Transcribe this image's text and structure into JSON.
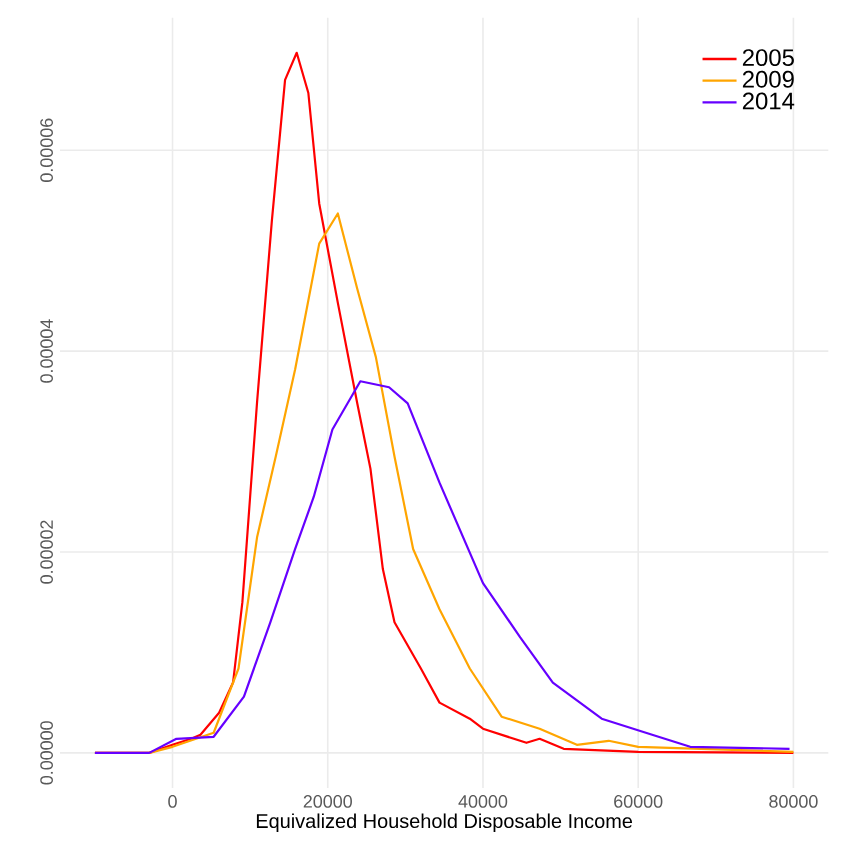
{
  "chart_data": {
    "type": "line",
    "xlabel": "Equivalized Household Disposable Income",
    "xlim": [
      -14500,
      84500
    ],
    "ylim": [
      -3.5e-06,
      7.32e-05
    ],
    "xticks": [
      0,
      20000,
      40000,
      60000,
      80000
    ],
    "yticks": [
      {
        "value": 0,
        "label": "0.00000"
      },
      {
        "value": 2e-05,
        "label": "0.00002"
      },
      {
        "value": 4e-05,
        "label": "0.00004"
      },
      {
        "value": 6e-05,
        "label": "0.00006"
      }
    ],
    "grid": true,
    "legend": "top right",
    "marker": "none",
    "line_style": "solid",
    "series": [
      {
        "name": "2005",
        "color": "#ff0000",
        "x": [
          -10000,
          -3000,
          0,
          2400,
          3600,
          6000,
          7800,
          9000,
          10900,
          12800,
          14500,
          16000,
          17500,
          18900,
          21300,
          23800,
          25500,
          27100,
          28600,
          32000,
          34400,
          38300,
          40000,
          45600,
          47300,
          50400,
          60000,
          80000
        ],
        "values": [
          0,
          0,
          8e-07,
          1.4e-06,
          1.8e-06,
          4e-06,
          7e-06,
          1.5e-05,
          3.5e-05,
          5.3e-05,
          6.7e-05,
          6.97e-05,
          6.57e-05,
          5.47e-05,
          4.48e-05,
          3.48e-05,
          2.83e-05,
          1.83e-05,
          1.3e-05,
          8.4e-06,
          5e-06,
          3.4e-06,
          2.4e-06,
          1e-06,
          1.4e-06,
          4e-07,
          1e-07,
          0
        ]
      },
      {
        "name": "2009",
        "color": "#ffa500",
        "x": [
          -10000,
          -3000,
          0,
          5300,
          8500,
          10900,
          13300,
          15800,
          18900,
          21300,
          23800,
          26200,
          28600,
          31000,
          34400,
          38300,
          42400,
          47300,
          52100,
          56200,
          60000,
          80000
        ],
        "values": [
          0,
          0,
          6e-07,
          2e-06,
          8.4e-06,
          2.15e-05,
          2.95e-05,
          3.82e-05,
          5.07e-05,
          5.37e-05,
          4.62e-05,
          3.94e-05,
          2.95e-05,
          2.03e-05,
          1.43e-05,
          8.4e-06,
          3.6e-06,
          2.4e-06,
          8e-07,
          1.2e-06,
          6e-07,
          1e-07
        ]
      },
      {
        "name": "2014",
        "color": "#6600ff",
        "x": [
          -10000,
          -3000,
          500,
          5300,
          9200,
          12600,
          15800,
          18200,
          20600,
          24200,
          27900,
          30300,
          34400,
          40000,
          44800,
          49000,
          55300,
          61800,
          66700,
          79500
        ],
        "values": [
          0,
          0,
          1.4e-06,
          1.6e-06,
          5.6e-06,
          1.3e-05,
          2.03e-05,
          2.55e-05,
          3.22e-05,
          3.7e-05,
          3.64e-05,
          3.48e-05,
          2.69e-05,
          1.69e-05,
          1.15e-05,
          7e-06,
          3.4e-06,
          1.8e-06,
          6e-07,
          4e-07
        ]
      }
    ]
  }
}
